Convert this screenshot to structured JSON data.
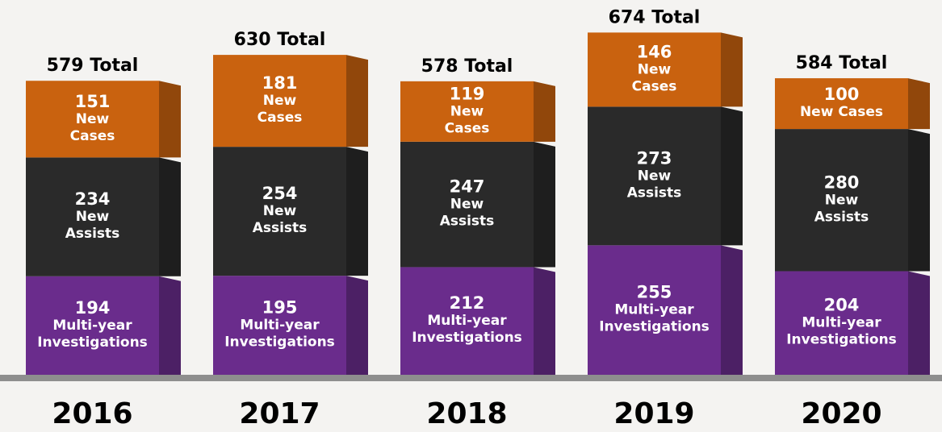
{
  "chart_data": {
    "type": "stacked-bar",
    "categories": [
      "2016",
      "2017",
      "2018",
      "2019",
      "2020"
    ],
    "series": [
      {
        "name": "Multi-year Investigations",
        "color": "#6a2c8c",
        "values": [
          194,
          195,
          212,
          255,
          204
        ]
      },
      {
        "name": "New Assists",
        "color": "#2a2a2a",
        "values": [
          234,
          254,
          247,
          273,
          280
        ]
      },
      {
        "name": "New Cases",
        "color": "#c9620f",
        "values": [
          151,
          181,
          119,
          146,
          100
        ]
      }
    ],
    "totals": [
      579,
      630,
      578,
      674,
      584
    ],
    "total_labels": [
      "579 Total",
      "630 Total",
      "578 Total",
      "674 Total",
      "584 Total"
    ],
    "ylim": [
      0,
      700
    ]
  }
}
